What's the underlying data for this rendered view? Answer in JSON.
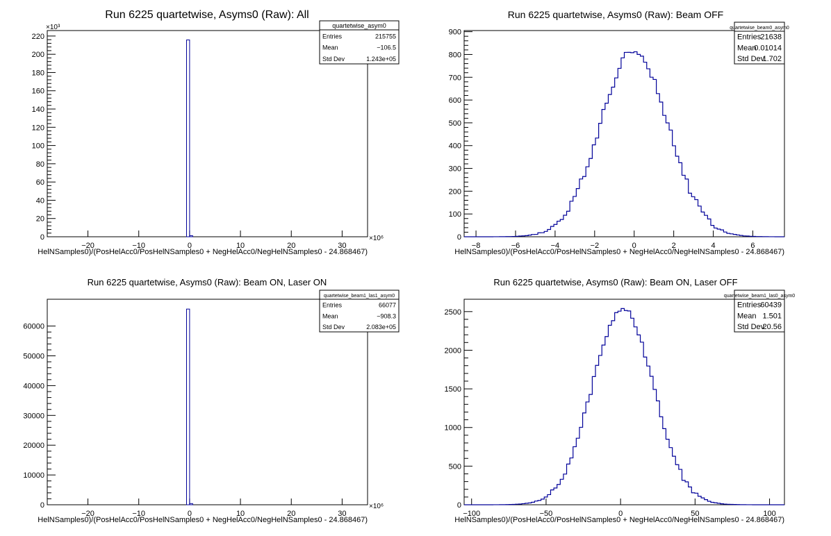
{
  "chart_data": [
    {
      "type": "histogram",
      "title": "Run 6225 quartetwise, Asyms0 (Raw): All",
      "xlabel": "HelNSamples0)/(PosHelAcc0/PosHelNSamples0 + NegHelAcc0/NegHelNSamples0 - 24.868467)",
      "ylabel": "",
      "x_exponent": "×10⁶",
      "y_exponent": "×10³",
      "xlim": [
        -28,
        35
      ],
      "ylim": [
        0,
        226
      ],
      "xticks": [
        -20,
        -10,
        0,
        10,
        20,
        30
      ],
      "xtick_labels": [
        "−20",
        "−10",
        "0",
        "10",
        "20",
        "30"
      ],
      "yticks": [
        0,
        20,
        40,
        60,
        80,
        100,
        120,
        140,
        160,
        180,
        200,
        220
      ],
      "ytick_labels": [
        "0",
        "20",
        "40",
        "60",
        "80",
        "100",
        "120",
        "140",
        "160",
        "180",
        "200",
        "220"
      ],
      "bins": [
        {
          "x0": -0.6,
          "x1": 0.0,
          "y": 215.7
        },
        {
          "x0": 0.0,
          "x1": 0.6,
          "y": 1.2
        }
      ],
      "stats": {
        "name": "quartetwise_asym0",
        "rows": [
          {
            "label": "Entries",
            "value": "215755"
          },
          {
            "label": "Mean",
            "value": "−106.5"
          },
          {
            "label": "Std Dev",
            "value": "1.243e+05"
          }
        ]
      },
      "line_color": "#000099"
    },
    {
      "type": "histogram",
      "title": "Run 6225 quartetwise, Asyms0 (Raw): Beam OFF",
      "xlabel": "HelNSamples0)/(PosHelAcc0/PosHelNSamples0 + NegHelAcc0/NegHelNSamples0 - 24.868467)",
      "ylabel": "",
      "xlim": [
        -8.6,
        7.6
      ],
      "ylim": [
        0,
        905
      ],
      "xticks": [
        -8,
        -6,
        -4,
        -2,
        0,
        2,
        4,
        6
      ],
      "xtick_labels": [
        "−8",
        "−6",
        "−4",
        "−2",
        "0",
        "2",
        "4",
        "6"
      ],
      "yticks": [
        0,
        100,
        200,
        300,
        400,
        500,
        600,
        700,
        800,
        900
      ],
      "ytick_labels": [
        "0",
        "100",
        "200",
        "300",
        "400",
        "500",
        "600",
        "700",
        "800",
        "900"
      ],
      "shape": {
        "mean": 0.0,
        "sigma": 1.702,
        "peak": 820,
        "noise": 18
      },
      "stats": {
        "name": "quartetwise_beam0_asym0",
        "rows": [
          {
            "label": "Entries",
            "value": "21638"
          },
          {
            "label": "Mean",
            "value": "0.01014"
          },
          {
            "label": "Std Dev",
            "value": "1.702"
          }
        ]
      },
      "line_color": "#000099"
    },
    {
      "type": "histogram",
      "title": "Run 6225 quartetwise, Asyms0 (Raw): Beam ON, Laser ON",
      "xlabel": "HelNSamples0)/(PosHelAcc0/PosHelNSamples0 + NegHelAcc0/NegHelNSamples0 - 24.868467)",
      "ylabel": "",
      "x_exponent": "×10⁶",
      "xlim": [
        -28,
        35
      ],
      "ylim": [
        0,
        69000
      ],
      "xticks": [
        -20,
        -10,
        0,
        10,
        20,
        30
      ],
      "xtick_labels": [
        "−20",
        "−10",
        "0",
        "10",
        "20",
        "30"
      ],
      "yticks": [
        0,
        10000,
        20000,
        30000,
        40000,
        50000,
        60000
      ],
      "ytick_labels": [
        "0",
        "10000",
        "20000",
        "30000",
        "40000",
        "50000",
        "60000"
      ],
      "bins": [
        {
          "x0": -0.6,
          "x1": 0.0,
          "y": 65700
        },
        {
          "x0": 0.0,
          "x1": 0.6,
          "y": 400
        }
      ],
      "stats": {
        "name": "quartetwise_beam1_las1_asym0",
        "rows": [
          {
            "label": "Entries",
            "value": "66077"
          },
          {
            "label": "Mean",
            "value": "−908.3"
          },
          {
            "label": "Std Dev",
            "value": "2.083e+05"
          }
        ]
      },
      "line_color": "#000099"
    },
    {
      "type": "histogram",
      "title": "Run 6225 quartetwise, Asyms0 (Raw): Beam ON, Laser OFF",
      "xlabel": "HelNSamples0)/(PosHelAcc0/PosHelNSamples0 + NegHelAcc0/NegHelNSamples0 - 24.868467)",
      "ylabel": "",
      "xlim": [
        -105,
        110
      ],
      "ylim": [
        0,
        2660
      ],
      "xticks": [
        -100,
        -50,
        0,
        50,
        100
      ],
      "xtick_labels": [
        "−100",
        "−50",
        "0",
        "50",
        "100"
      ],
      "yticks": [
        0,
        500,
        1000,
        1500,
        2000,
        2500
      ],
      "ytick_labels": [
        "0",
        "500",
        "1000",
        "1500",
        "2000",
        "2500"
      ],
      "shape": {
        "mean": 1.5,
        "sigma": 20.56,
        "peak": 2540,
        "noise": 40
      },
      "stats": {
        "name": "quartetwise_beam1_las0_asym0",
        "rows": [
          {
            "label": "Entries",
            "value": "60439"
          },
          {
            "label": "Mean",
            "value": "1.501"
          },
          {
            "label": "Std Dev",
            "value": "20.56"
          }
        ]
      },
      "line_color": "#000099"
    }
  ]
}
